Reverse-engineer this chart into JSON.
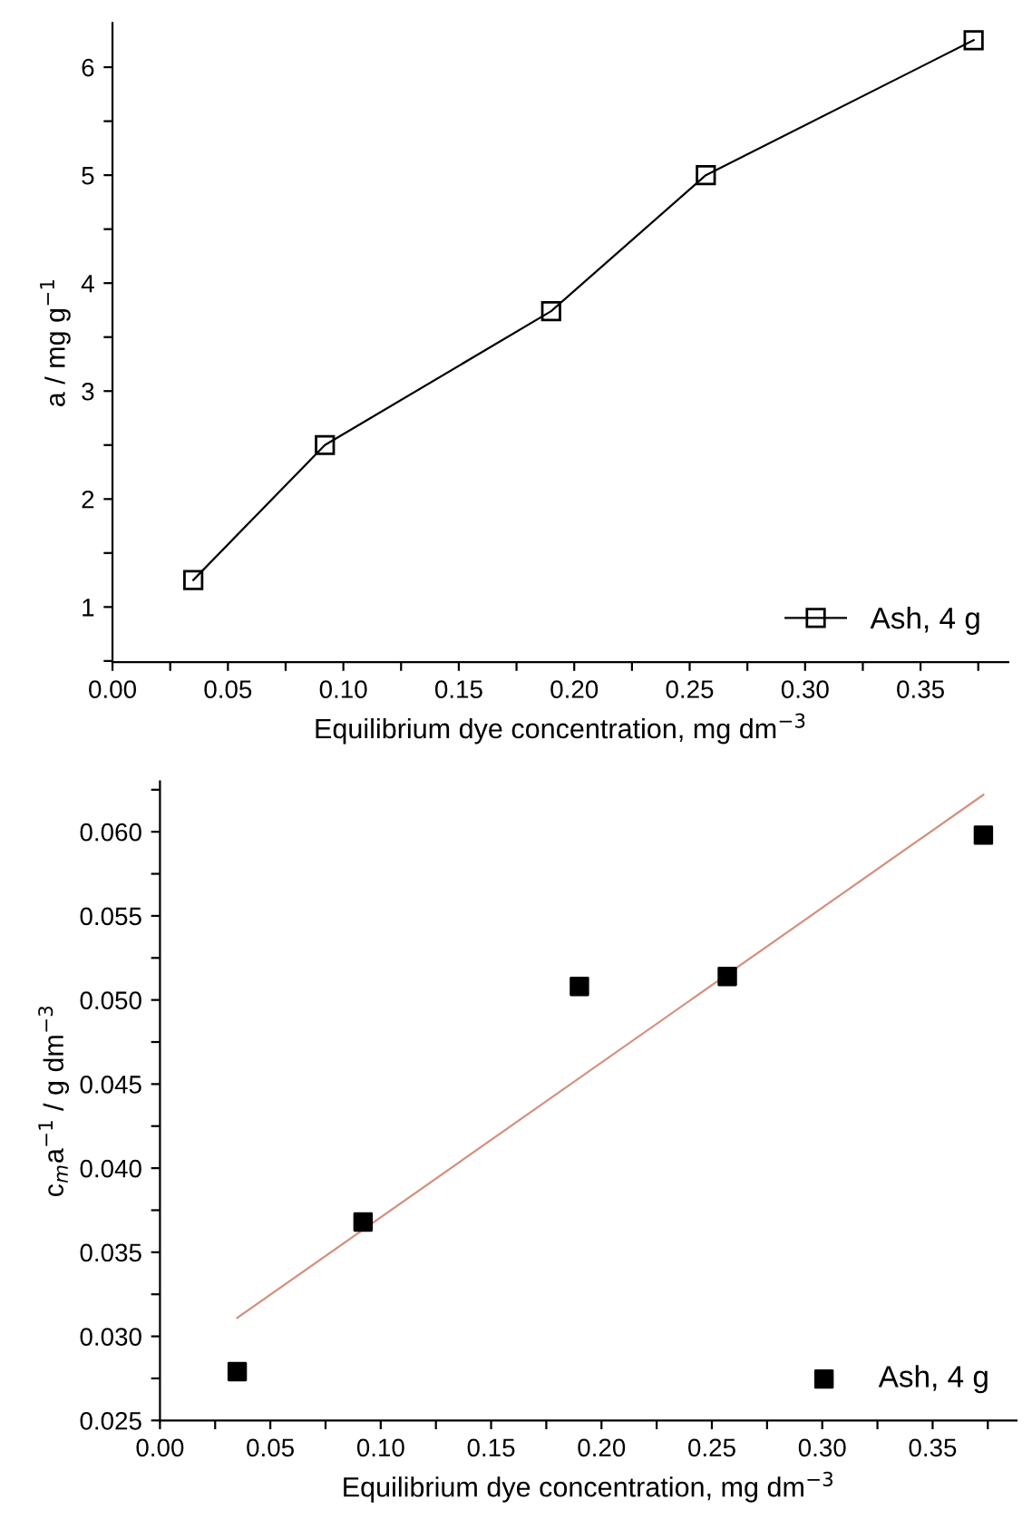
{
  "chart_data": [
    {
      "type": "line",
      "xlabel": "Equilibrium dye concentration, mg dm$^{−3}$",
      "ylabel": "a / mg g$^{−1}$",
      "x": [
        0.035,
        0.092,
        0.19,
        0.257,
        0.373
      ],
      "series": [
        {
          "name": "Ash, 4 g",
          "color": "#000000",
          "values": [
            1.25,
            2.5,
            3.74,
            5.0,
            6.25
          ]
        }
      ],
      "xlim": [
        0,
        0.388
      ],
      "ylim": [
        0.49,
        6.41
      ],
      "xticks": [
        {
          "value": 0,
          "label": "0.00"
        },
        {
          "value": 0.025,
          "label": null
        },
        {
          "value": 0.05,
          "label": "0.05"
        },
        {
          "value": 0.075,
          "label": null
        },
        {
          "value": 0.1,
          "label": "0.10"
        },
        {
          "value": 0.125,
          "label": null
        },
        {
          "value": 0.15,
          "label": "0.15"
        },
        {
          "value": 0.175,
          "label": null
        },
        {
          "value": 0.2,
          "label": "0.20"
        },
        {
          "value": 0.225,
          "label": null
        },
        {
          "value": 0.25,
          "label": "0.25"
        },
        {
          "value": 0.275,
          "label": null
        },
        {
          "value": 0.3,
          "label": "0.30"
        },
        {
          "value": 0.325,
          "label": null
        },
        {
          "value": 0.35,
          "label": "0.35"
        },
        {
          "value": 0.375,
          "label": null
        }
      ],
      "yticks": [
        {
          "value": 0.5,
          "label": null
        },
        1,
        {
          "value": 1.5,
          "label": null
        },
        2,
        {
          "value": 2.5,
          "label": null
        },
        3,
        {
          "value": 3.5,
          "label": null
        },
        4,
        {
          "value": 4.5,
          "label": null
        },
        5,
        {
          "value": 5.5,
          "label": null
        },
        6
      ],
      "grid": false,
      "legend": "bottom right",
      "marker": "square",
      "line_style": "solid"
    },
    {
      "type": "scatter",
      "xlabel": "Equilibrium dye concentration, mg dm$^{−3}$",
      "ylabel": "c$_{m}$a$^{−1}$ / g dm$^{−3}$",
      "x": [
        0.035,
        0.092,
        0.19,
        0.257,
        0.373
      ],
      "series": [
        {
          "name": "Ash, 4 g",
          "color": "#000000",
          "values": [
            0.0279,
            0.0368,
            0.0508,
            0.0514,
            0.0598
          ],
          "marker": "square"
        },
        {
          "type": "line",
          "color": "#d4907f",
          "x": [
            0.035,
            0.373
          ],
          "values": [
            0.0311,
            0.0622
          ],
          "marker": "none"
        }
      ],
      "xlim": [
        0,
        0.388
      ],
      "ylim": [
        0.025,
        0.063
      ],
      "xticks": [
        {
          "value": 0,
          "label": "0.00"
        },
        {
          "value": 0.025,
          "label": null
        },
        {
          "value": 0.05,
          "label": "0.05"
        },
        {
          "value": 0.075,
          "label": null
        },
        {
          "value": 0.1,
          "label": "0.10"
        },
        {
          "value": 0.125,
          "label": null
        },
        {
          "value": 0.15,
          "label": "0.15"
        },
        {
          "value": 0.175,
          "label": null
        },
        {
          "value": 0.2,
          "label": "0.20"
        },
        {
          "value": 0.225,
          "label": null
        },
        {
          "value": 0.25,
          "label": "0.25"
        },
        {
          "value": 0.275,
          "label": null
        },
        {
          "value": 0.3,
          "label": "0.30"
        },
        {
          "value": 0.325,
          "label": null
        },
        {
          "value": 0.35,
          "label": "0.35"
        },
        {
          "value": 0.375,
          "label": null
        }
      ],
      "yticks": [
        {
          "value": 0.025,
          "label": "0.025"
        },
        {
          "value": 0.0275,
          "label": null
        },
        {
          "value": 0.03,
          "label": "0.030"
        },
        {
          "value": 0.0325,
          "label": null
        },
        {
          "value": 0.035,
          "label": "0.035"
        },
        {
          "value": 0.0375,
          "label": null
        },
        {
          "value": 0.04,
          "label": "0.040"
        },
        {
          "value": 0.0425,
          "label": null
        },
        {
          "value": 0.045,
          "label": "0.045"
        },
        {
          "value": 0.0475,
          "label": null
        },
        {
          "value": 0.05,
          "label": "0.050"
        },
        {
          "value": 0.0525,
          "label": null
        },
        {
          "value": 0.055,
          "label": "0.055"
        },
        {
          "value": 0.0575,
          "label": null
        },
        {
          "value": 0.06,
          "label": "0.060"
        },
        {
          "value": 0.0625,
          "label": null
        }
      ],
      "grid": false,
      "legend": "bottom right"
    }
  ]
}
